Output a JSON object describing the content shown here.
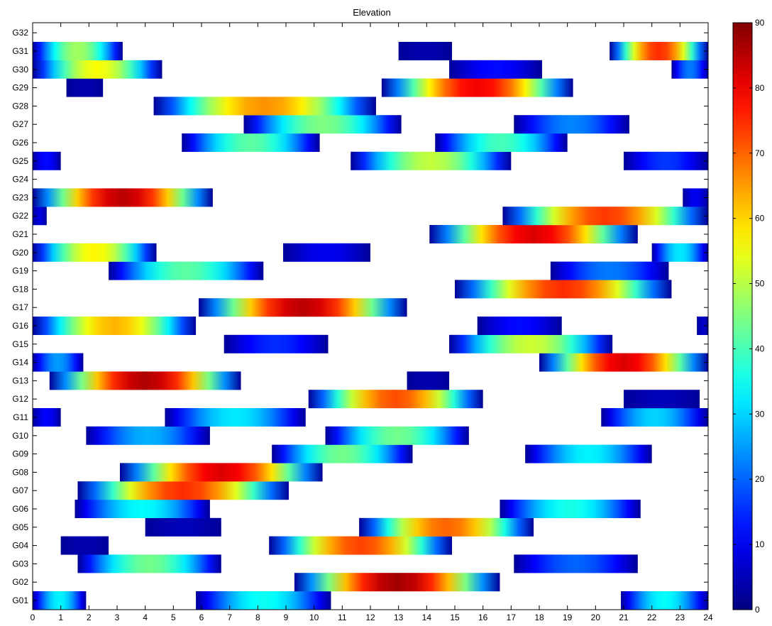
{
  "chart_data": {
    "type": "heatmap",
    "title": "Elevation",
    "xlabel": "",
    "ylabel": "",
    "xlim": [
      0,
      24
    ],
    "xticks": [
      0,
      1,
      2,
      3,
      4,
      5,
      6,
      7,
      8,
      9,
      10,
      11,
      12,
      13,
      14,
      15,
      16,
      17,
      18,
      19,
      20,
      21,
      22,
      23,
      24
    ],
    "grid": false,
    "colormap": "jet",
    "colorbar": {
      "position": "right",
      "range": [
        0,
        90
      ],
      "ticks": [
        0,
        10,
        20,
        30,
        40,
        50,
        60,
        70,
        80,
        90
      ]
    },
    "categories": [
      "G01",
      "G02",
      "G03",
      "G04",
      "G05",
      "G06",
      "G07",
      "G08",
      "G09",
      "G10",
      "G11",
      "G12",
      "G13",
      "G14",
      "G15",
      "G16",
      "G17",
      "G18",
      "G19",
      "G20",
      "G21",
      "G22",
      "G23",
      "G24",
      "G25",
      "G26",
      "G27",
      "G28",
      "G29",
      "G30",
      "G31",
      "G32"
    ],
    "series": [
      {
        "sat": "G01",
        "tracks": [
          {
            "start": 0.0,
            "end": 1.9,
            "peak": 33
          },
          {
            "start": 5.8,
            "end": 10.6,
            "peak": 35
          },
          {
            "start": 20.9,
            "end": 24.0,
            "peak": 34
          }
        ]
      },
      {
        "sat": "G02",
        "tracks": [
          {
            "start": 9.3,
            "end": 16.6,
            "peak": 87
          }
        ]
      },
      {
        "sat": "G03",
        "tracks": [
          {
            "start": 1.6,
            "end": 6.7,
            "peak": 44
          },
          {
            "start": 17.1,
            "end": 21.5,
            "peak": 20
          }
        ]
      },
      {
        "sat": "G04",
        "tracks": [
          {
            "start": 1.0,
            "end": 2.7,
            "peak": 4
          },
          {
            "start": 8.4,
            "end": 14.9,
            "peak": 73
          }
        ]
      },
      {
        "sat": "G05",
        "tracks": [
          {
            "start": 4.0,
            "end": 6.7,
            "peak": 5
          },
          {
            "start": 11.6,
            "end": 17.8,
            "peak": 70
          }
        ]
      },
      {
        "sat": "G06",
        "tracks": [
          {
            "start": 1.5,
            "end": 6.3,
            "peak": 34
          },
          {
            "start": 16.6,
            "end": 21.6,
            "peak": 36
          }
        ]
      },
      {
        "sat": "G07",
        "tracks": [
          {
            "start": 1.6,
            "end": 9.1,
            "peak": 75
          }
        ]
      },
      {
        "sat": "G08",
        "tracks": [
          {
            "start": 3.1,
            "end": 10.3,
            "peak": 82
          }
        ]
      },
      {
        "sat": "G09",
        "tracks": [
          {
            "start": 8.5,
            "end": 13.5,
            "peak": 44
          },
          {
            "start": 17.5,
            "end": 22.0,
            "peak": 33
          }
        ]
      },
      {
        "sat": "G10",
        "tracks": [
          {
            "start": 1.9,
            "end": 6.3,
            "peak": 27
          },
          {
            "start": 10.4,
            "end": 15.5,
            "peak": 44
          }
        ]
      },
      {
        "sat": "G11",
        "tracks": [
          {
            "start": 0.0,
            "end": 1.0,
            "peak": 11
          },
          {
            "start": 4.7,
            "end": 9.7,
            "peak": 32
          },
          {
            "start": 20.2,
            "end": 24.0,
            "peak": 30
          }
        ]
      },
      {
        "sat": "G12",
        "tracks": [
          {
            "start": 9.8,
            "end": 16.0,
            "peak": 72
          },
          {
            "start": 21.0,
            "end": 23.7,
            "peak": 5
          }
        ]
      },
      {
        "sat": "G13",
        "tracks": [
          {
            "start": 0.6,
            "end": 7.4,
            "peak": 86
          },
          {
            "start": 13.3,
            "end": 14.8,
            "peak": 4
          }
        ]
      },
      {
        "sat": "G14",
        "tracks": [
          {
            "start": 0.0,
            "end": 1.8,
            "peak": 25
          },
          {
            "start": 18.0,
            "end": 24.0,
            "peak": 82
          }
        ]
      },
      {
        "sat": "G15",
        "tracks": [
          {
            "start": 6.8,
            "end": 10.5,
            "peak": 15
          },
          {
            "start": 14.8,
            "end": 20.6,
            "peak": 52
          }
        ]
      },
      {
        "sat": "G16",
        "tracks": [
          {
            "start": 0.0,
            "end": 5.8,
            "peak": 63
          },
          {
            "start": 15.8,
            "end": 18.8,
            "peak": 12
          },
          {
            "start": 23.6,
            "end": 24.0,
            "peak": 6
          }
        ]
      },
      {
        "sat": "G17",
        "tracks": [
          {
            "start": 5.9,
            "end": 13.3,
            "peak": 85
          }
        ]
      },
      {
        "sat": "G18",
        "tracks": [
          {
            "start": 15.0,
            "end": 22.7,
            "peak": 75
          }
        ]
      },
      {
        "sat": "G19",
        "tracks": [
          {
            "start": 2.7,
            "end": 8.2,
            "peak": 42
          },
          {
            "start": 18.4,
            "end": 22.6,
            "peak": 22
          }
        ]
      },
      {
        "sat": "G20",
        "tracks": [
          {
            "start": 0.0,
            "end": 4.4,
            "peak": 57
          },
          {
            "start": 8.9,
            "end": 12.0,
            "peak": 10
          },
          {
            "start": 22.0,
            "end": 24.0,
            "peak": 32
          }
        ]
      },
      {
        "sat": "G21",
        "tracks": [
          {
            "start": 14.1,
            "end": 21.5,
            "peak": 82
          }
        ]
      },
      {
        "sat": "G22",
        "tracks": [
          {
            "start": 0.0,
            "end": 0.5,
            "peak": 8
          },
          {
            "start": 16.7,
            "end": 24.0,
            "peak": 74
          }
        ]
      },
      {
        "sat": "G23",
        "tracks": [
          {
            "start": 0.0,
            "end": 6.4,
            "peak": 85
          },
          {
            "start": 23.1,
            "end": 24.0,
            "peak": 10
          }
        ]
      },
      {
        "sat": "G24",
        "tracks": []
      },
      {
        "sat": "G25",
        "tracks": [
          {
            "start": 0.0,
            "end": 1.0,
            "peak": 12
          },
          {
            "start": 11.3,
            "end": 17.0,
            "peak": 51
          },
          {
            "start": 21.0,
            "end": 24.0,
            "peak": 16
          }
        ]
      },
      {
        "sat": "G26",
        "tracks": [
          {
            "start": 5.3,
            "end": 10.2,
            "peak": 42
          },
          {
            "start": 14.3,
            "end": 19.0,
            "peak": 40
          }
        ]
      },
      {
        "sat": "G27",
        "tracks": [
          {
            "start": 7.5,
            "end": 13.1,
            "peak": 45
          },
          {
            "start": 17.1,
            "end": 21.2,
            "peak": 23
          }
        ]
      },
      {
        "sat": "G28",
        "tracks": [
          {
            "start": 4.3,
            "end": 12.2,
            "peak": 66
          }
        ]
      },
      {
        "sat": "G29",
        "tracks": [
          {
            "start": 1.2,
            "end": 2.5,
            "peak": 4
          },
          {
            "start": 12.4,
            "end": 19.2,
            "peak": 80
          }
        ]
      },
      {
        "sat": "G30",
        "tracks": [
          {
            "start": 0.0,
            "end": 4.6,
            "peak": 56
          },
          {
            "start": 14.8,
            "end": 18.1,
            "peak": 12
          },
          {
            "start": 22.7,
            "end": 24.0,
            "peak": 22
          }
        ]
      },
      {
        "sat": "G31",
        "tracks": [
          {
            "start": 0.0,
            "end": 3.2,
            "peak": 48
          },
          {
            "start": 13.0,
            "end": 14.9,
            "peak": 4
          },
          {
            "start": 20.5,
            "end": 24.0,
            "peak": 75
          }
        ]
      },
      {
        "sat": "G32",
        "tracks": []
      }
    ]
  }
}
